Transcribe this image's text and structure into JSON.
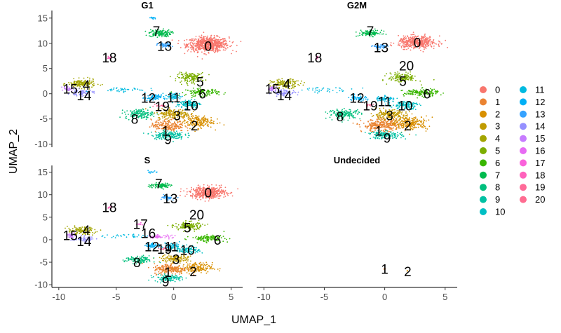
{
  "chart_data": {
    "type": "scatter",
    "title": "",
    "xlabel": "UMAP_1",
    "ylabel": "UMAP_2",
    "xlim": [
      -10.6,
      6
    ],
    "ylim": [
      -10.6,
      16.5
    ],
    "xticks": [
      -10,
      -5,
      0,
      5
    ],
    "yticks": [
      -10,
      -5,
      0,
      5,
      10,
      15
    ],
    "xtick_labels": [
      "-10",
      "-5",
      "0",
      "5"
    ],
    "ytick_labels": [
      "-10",
      "-5",
      "0",
      "5",
      "10",
      "15"
    ],
    "legend_position": "right",
    "legend_columns": 2,
    "clusters": [
      {
        "name": "0",
        "color": "#F8766D"
      },
      {
        "name": "1",
        "color": "#EA8331"
      },
      {
        "name": "2",
        "color": "#D89000"
      },
      {
        "name": "3",
        "color": "#C09B00"
      },
      {
        "name": "4",
        "color": "#A3A500"
      },
      {
        "name": "5",
        "color": "#7CAE00"
      },
      {
        "name": "6",
        "color": "#39B600"
      },
      {
        "name": "7",
        "color": "#00BB4E"
      },
      {
        "name": "8",
        "color": "#00BF7D"
      },
      {
        "name": "9",
        "color": "#00C1A3"
      },
      {
        "name": "10",
        "color": "#00BFC4"
      },
      {
        "name": "11",
        "color": "#00BAE0"
      },
      {
        "name": "12",
        "color": "#00B0F6"
      },
      {
        "name": "13",
        "color": "#35A2FF"
      },
      {
        "name": "14",
        "color": "#9590FF"
      },
      {
        "name": "15",
        "color": "#C77CFF"
      },
      {
        "name": "16",
        "color": "#E76BF3"
      },
      {
        "name": "17",
        "color": "#FA62DB"
      },
      {
        "name": "18",
        "color": "#FF62BC"
      },
      {
        "name": "19",
        "color": "#FF6A98"
      },
      {
        "name": "20",
        "color": "#FF6C91"
      }
    ],
    "panels": [
      {
        "title": "G1",
        "labels": [
          {
            "text": "0",
            "x": 3,
            "y": 9.5
          },
          {
            "text": "7",
            "x": -1.5,
            "y": 12.5
          },
          {
            "text": "13",
            "x": -0.8,
            "y": 9.5
          },
          {
            "text": "18",
            "x": -5.6,
            "y": 7.2
          },
          {
            "text": "5",
            "x": 2.3,
            "y": 2.4
          },
          {
            "text": "4",
            "x": -7.6,
            "y": 1.8
          },
          {
            "text": "15",
            "x": -9,
            "y": 1
          },
          {
            "text": "14",
            "x": -7.8,
            "y": -0.3
          },
          {
            "text": "12",
            "x": -2.2,
            "y": -0.8
          },
          {
            "text": "11",
            "x": 0,
            "y": -0.7
          },
          {
            "text": "6",
            "x": 2.5,
            "y": 0
          },
          {
            "text": "19",
            "x": -1,
            "y": -2.5
          },
          {
            "text": "10",
            "x": 1.5,
            "y": -2.3
          },
          {
            "text": "3",
            "x": 0.3,
            "y": -4.3
          },
          {
            "text": "8",
            "x": -3.4,
            "y": -5
          },
          {
            "text": "2",
            "x": 1.8,
            "y": -6.3
          },
          {
            "text": "1",
            "x": -0.7,
            "y": -7.3
          },
          {
            "text": "9",
            "x": -0.5,
            "y": -9
          }
        ],
        "clusters": [
          {
            "c": 0,
            "x": 3,
            "y": 9.8,
            "sx": 1.5,
            "sy": 1.2,
            "n": 700
          },
          {
            "c": 7,
            "x": -1.2,
            "y": 12,
            "sx": 0.8,
            "sy": 0.6,
            "n": 130
          },
          {
            "c": 13,
            "x": -0.8,
            "y": 9.6,
            "sx": 0.5,
            "sy": 0.4,
            "n": 60
          },
          {
            "c": 12,
            "x": -1.8,
            "y": 15,
            "sx": 0.3,
            "sy": 0.2,
            "n": 15
          },
          {
            "c": 18,
            "x": -5.6,
            "y": 7.2,
            "sx": 0.15,
            "sy": 0.3,
            "n": 12
          },
          {
            "c": 5,
            "x": 1.5,
            "y": 3.2,
            "sx": 1,
            "sy": 0.8,
            "n": 150
          },
          {
            "c": 6,
            "x": 2.5,
            "y": 0.3,
            "sx": 1.2,
            "sy": 0.6,
            "n": 130
          },
          {
            "c": 4,
            "x": -8,
            "y": 2,
            "sx": 1,
            "sy": 0.7,
            "n": 150
          },
          {
            "c": 14,
            "x": -8,
            "y": 0.2,
            "sx": 0.8,
            "sy": 0.5,
            "n": 70
          },
          {
            "c": 15,
            "x": -9.2,
            "y": 1,
            "sx": 0.3,
            "sy": 0.4,
            "n": 35
          },
          {
            "c": 11,
            "x": -4.5,
            "y": 0.8,
            "sx": 2,
            "sy": 0.4,
            "n": 40
          },
          {
            "c": 12,
            "x": -1.8,
            "y": -0.8,
            "sx": 0.6,
            "sy": 0.5,
            "n": 70
          },
          {
            "c": 11,
            "x": 0,
            "y": -0.5,
            "sx": 0.6,
            "sy": 0.6,
            "n": 60
          },
          {
            "c": 19,
            "x": -1.2,
            "y": -2.3,
            "sx": 0.3,
            "sy": 0.2,
            "n": 15
          },
          {
            "c": 10,
            "x": 1.3,
            "y": -2,
            "sx": 0.9,
            "sy": 0.7,
            "n": 110
          },
          {
            "c": 3,
            "x": 0,
            "y": -4,
            "sx": 1.2,
            "sy": 0.8,
            "n": 180
          },
          {
            "c": 8,
            "x": -3,
            "y": -4,
            "sx": 1,
            "sy": 0.8,
            "n": 140
          },
          {
            "c": 2,
            "x": 2,
            "y": -5.5,
            "sx": 1.2,
            "sy": 1.1,
            "n": 200
          },
          {
            "c": 1,
            "x": -0.5,
            "y": -6.3,
            "sx": 1.2,
            "sy": 1,
            "n": 200
          },
          {
            "c": 9,
            "x": -0.5,
            "y": -8.2,
            "sx": 1.2,
            "sy": 0.7,
            "n": 160
          }
        ]
      },
      {
        "title": "G2M",
        "labels": [
          {
            "text": "0",
            "x": 2.7,
            "y": 10.2
          },
          {
            "text": "7",
            "x": -1.2,
            "y": 12.5
          },
          {
            "text": "13",
            "x": -0.3,
            "y": 9.2
          },
          {
            "text": "18",
            "x": -5.8,
            "y": 7.2
          },
          {
            "text": "20",
            "x": 1.8,
            "y": 5.6
          },
          {
            "text": "5",
            "x": 1.5,
            "y": 2.5
          },
          {
            "text": "4",
            "x": -8.1,
            "y": 2
          },
          {
            "text": "15",
            "x": -9.3,
            "y": 1
          },
          {
            "text": "14",
            "x": -8.3,
            "y": -0.3
          },
          {
            "text": "12",
            "x": -2.3,
            "y": -0.8
          },
          {
            "text": "19",
            "x": -1.2,
            "y": -2.3
          },
          {
            "text": "11",
            "x": 0,
            "y": -1.5
          },
          {
            "text": "10",
            "x": 1.7,
            "y": -2.3
          },
          {
            "text": "6",
            "x": 3.5,
            "y": 0
          },
          {
            "text": "3",
            "x": 0.4,
            "y": -4.3
          },
          {
            "text": "8",
            "x": -3.7,
            "y": -4.5
          },
          {
            "text": "2",
            "x": 1.9,
            "y": -6.3
          },
          {
            "text": "1",
            "x": -0.5,
            "y": -7.3
          },
          {
            "text": "9",
            "x": 0.2,
            "y": -8.7
          }
        ],
        "clusters": [
          {
            "c": 0,
            "x": 2.7,
            "y": 10.2,
            "sx": 1.3,
            "sy": 1,
            "n": 450
          },
          {
            "c": 7,
            "x": -1.2,
            "y": 12,
            "sx": 0.8,
            "sy": 0.5,
            "n": 100
          },
          {
            "c": 13,
            "x": -0.4,
            "y": 9.3,
            "sx": 0.5,
            "sy": 0.4,
            "n": 50
          },
          {
            "c": 18,
            "x": -5.6,
            "y": 7.2,
            "sx": 0.15,
            "sy": 0.3,
            "n": 10
          },
          {
            "c": 5,
            "x": 1.5,
            "y": 3.2,
            "sx": 1,
            "sy": 0.8,
            "n": 140
          },
          {
            "c": 6,
            "x": 3,
            "y": 0.2,
            "sx": 1.2,
            "sy": 0.6,
            "n": 140
          },
          {
            "c": 4,
            "x": -8.2,
            "y": 2,
            "sx": 1,
            "sy": 0.7,
            "n": 140
          },
          {
            "c": 14,
            "x": -8.3,
            "y": 0.2,
            "sx": 0.8,
            "sy": 0.5,
            "n": 70
          },
          {
            "c": 15,
            "x": -9.3,
            "y": 1,
            "sx": 0.3,
            "sy": 0.4,
            "n": 30
          },
          {
            "c": 11,
            "x": -4.8,
            "y": 0.8,
            "sx": 2,
            "sy": 0.4,
            "n": 35
          },
          {
            "c": 12,
            "x": -2.2,
            "y": -0.8,
            "sx": 0.6,
            "sy": 0.5,
            "n": 60
          },
          {
            "c": 11,
            "x": 0,
            "y": -1,
            "sx": 0.6,
            "sy": 0.6,
            "n": 60
          },
          {
            "c": 19,
            "x": -1.2,
            "y": -2.3,
            "sx": 0.3,
            "sy": 0.2,
            "n": 12
          },
          {
            "c": 10,
            "x": 1.7,
            "y": -2.2,
            "sx": 0.9,
            "sy": 0.7,
            "n": 110
          },
          {
            "c": 3,
            "x": 0.3,
            "y": -4.2,
            "sx": 1.2,
            "sy": 0.8,
            "n": 170
          },
          {
            "c": 8,
            "x": -3.3,
            "y": -4,
            "sx": 1.1,
            "sy": 0.8,
            "n": 160
          },
          {
            "c": 2,
            "x": 2,
            "y": -5.8,
            "sx": 1.3,
            "sy": 1.1,
            "n": 260
          },
          {
            "c": 1,
            "x": -0.3,
            "y": -6.3,
            "sx": 1.3,
            "sy": 1,
            "n": 260
          },
          {
            "c": 9,
            "x": 0,
            "y": -8.2,
            "sx": 1.2,
            "sy": 0.6,
            "n": 140
          }
        ]
      },
      {
        "title": "S",
        "labels": [
          {
            "text": "0",
            "x": 3,
            "y": 10.5
          },
          {
            "text": "7",
            "x": -1.3,
            "y": 12.5
          },
          {
            "text": "13",
            "x": -0.3,
            "y": 9.2
          },
          {
            "text": "18",
            "x": -5.6,
            "y": 7.2
          },
          {
            "text": "20",
            "x": 2,
            "y": 5.6
          },
          {
            "text": "17",
            "x": -2.9,
            "y": 3.5
          },
          {
            "text": "5",
            "x": 1.2,
            "y": 2.7
          },
          {
            "text": "16",
            "x": -2.2,
            "y": 1.5
          },
          {
            "text": "4",
            "x": -7.6,
            "y": 2.2
          },
          {
            "text": "15",
            "x": -9,
            "y": 1
          },
          {
            "text": "14",
            "x": -7.8,
            "y": -0.3
          },
          {
            "text": "6",
            "x": 3.8,
            "y": 0
          },
          {
            "text": "12",
            "x": -1.9,
            "y": -1.5
          },
          {
            "text": "19",
            "x": -0.8,
            "y": -2
          },
          {
            "text": "11",
            "x": -0.2,
            "y": -1.5
          },
          {
            "text": "10",
            "x": 1.2,
            "y": -2.3
          },
          {
            "text": "3",
            "x": 0.2,
            "y": -4.3
          },
          {
            "text": "8",
            "x": -3.2,
            "y": -5
          },
          {
            "text": "2",
            "x": 1.7,
            "y": -7
          },
          {
            "text": "1",
            "x": -0.5,
            "y": -7.2
          },
          {
            "text": "9",
            "x": -0.7,
            "y": -9.3
          }
        ],
        "clusters": [
          {
            "c": 0,
            "x": 3,
            "y": 10.5,
            "sx": 1.3,
            "sy": 1.1,
            "n": 480
          },
          {
            "c": 7,
            "x": -1.2,
            "y": 12,
            "sx": 0.8,
            "sy": 0.5,
            "n": 100
          },
          {
            "c": 13,
            "x": -0.4,
            "y": 9.3,
            "sx": 0.5,
            "sy": 0.4,
            "n": 50
          },
          {
            "c": 12,
            "x": -1.8,
            "y": 15,
            "sx": 0.3,
            "sy": 0.2,
            "n": 12
          },
          {
            "c": 18,
            "x": -5.6,
            "y": 7.2,
            "sx": 0.15,
            "sy": 0.3,
            "n": 10
          },
          {
            "c": 17,
            "x": -2.9,
            "y": 3.5,
            "sx": 0.3,
            "sy": 0.2,
            "n": 12
          },
          {
            "c": 16,
            "x": -1.3,
            "y": 0.7,
            "sx": 1,
            "sy": 0.3,
            "n": 50
          },
          {
            "c": 5,
            "x": 1.3,
            "y": 3,
            "sx": 1,
            "sy": 0.8,
            "n": 140
          },
          {
            "c": 6,
            "x": 3,
            "y": 0.3,
            "sx": 1.2,
            "sy": 0.6,
            "n": 130
          },
          {
            "c": 4,
            "x": -8,
            "y": 2,
            "sx": 1,
            "sy": 0.7,
            "n": 120
          },
          {
            "c": 14,
            "x": -7.9,
            "y": 0.2,
            "sx": 0.8,
            "sy": 0.5,
            "n": 60
          },
          {
            "c": 15,
            "x": -9,
            "y": 1,
            "sx": 0.3,
            "sy": 0.4,
            "n": 30
          },
          {
            "c": 11,
            "x": -4.2,
            "y": 0.8,
            "sx": 1.5,
            "sy": 0.4,
            "n": 30
          },
          {
            "c": 12,
            "x": -1.8,
            "y": -1.3,
            "sx": 0.5,
            "sy": 0.5,
            "n": 50
          },
          {
            "c": 11,
            "x": -0.2,
            "y": -1.3,
            "sx": 0.6,
            "sy": 0.6,
            "n": 55
          },
          {
            "c": 19,
            "x": -0.9,
            "y": -2,
            "sx": 0.3,
            "sy": 0.2,
            "n": 12
          },
          {
            "c": 10,
            "x": 1.2,
            "y": -2.2,
            "sx": 0.9,
            "sy": 0.7,
            "n": 100
          },
          {
            "c": 3,
            "x": 0.2,
            "y": -4.2,
            "sx": 1.1,
            "sy": 0.7,
            "n": 140
          },
          {
            "c": 8,
            "x": -3,
            "y": -4.5,
            "sx": 1,
            "sy": 0.7,
            "n": 120
          },
          {
            "c": 2,
            "x": 1.8,
            "y": -6.3,
            "sx": 1.3,
            "sy": 1,
            "n": 180
          },
          {
            "c": 1,
            "x": -0.3,
            "y": -6.5,
            "sx": 1.2,
            "sy": 1,
            "n": 200
          },
          {
            "c": 9,
            "x": -0.5,
            "y": -8.5,
            "sx": 1,
            "sy": 0.6,
            "n": 120
          }
        ]
      },
      {
        "title": "Undecided",
        "labels": [
          {
            "text": "1",
            "x": 0,
            "y": -6.5
          },
          {
            "text": "2",
            "x": 1.9,
            "y": -7
          }
        ],
        "clusters": [
          {
            "c": 1,
            "x": 0,
            "y": -6.5,
            "sx": 0.08,
            "sy": 0.15,
            "n": 3
          },
          {
            "c": 2,
            "x": 1.9,
            "y": -6.9,
            "sx": 0.08,
            "sy": 0.1,
            "n": 2
          }
        ]
      }
    ]
  }
}
